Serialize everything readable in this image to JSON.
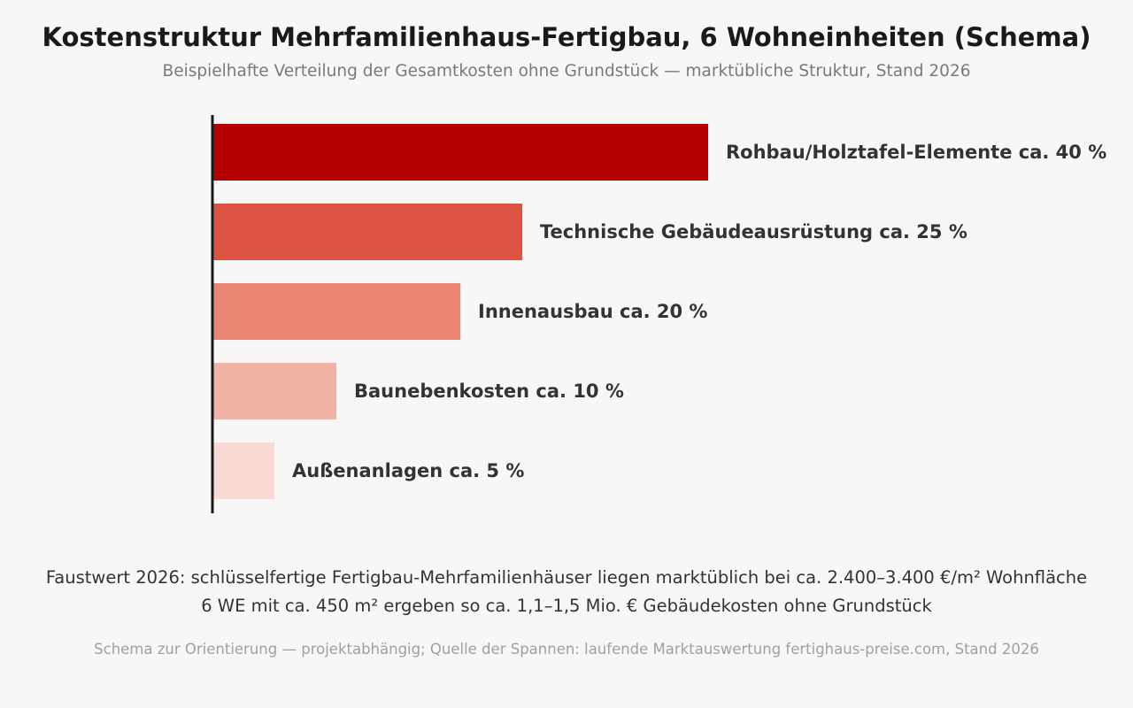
{
  "chart_data": {
    "type": "bar",
    "orientation": "horizontal",
    "title": "Kostenstruktur Mehrfamilienhaus-Fertigbau, 6 Wohneinheiten (Schema)",
    "subtitle": "Beispielhafte Verteilung der Gesamtkosten ohne Grundstück — marktübliche Struktur, Stand 2026",
    "categories": [
      "Rohbau/Holztafel-Elemente",
      "Technische Gebäudeausrüstung",
      "Innenausbau",
      "Baunebenkosten",
      "Außenanlagen"
    ],
    "values": [
      40,
      25,
      20,
      10,
      5
    ],
    "data_labels": [
      "Rohbau/Holztafel-Elemente ca. 40 %",
      "Technische Gebäudeausrüstung ca. 25 %",
      "Innenausbau ca. 20 %",
      "Baunebenkosten ca. 10 %",
      "Außenanlagen ca. 5 %"
    ],
    "colors": [
      "#b50000",
      "#dc5343",
      "#ea8673",
      "#f1b3a6",
      "#f8d9d3"
    ],
    "xlim": [
      0,
      40
    ],
    "grid": false,
    "legend": "none"
  },
  "notes": {
    "line1": "Faustwert 2026: schlüsselfertige Fertigbau-Mehrfamilienhäuser liegen marktüblich bei ca. 2.400–3.400 €/m² Wohnfläche",
    "line2": "6 WE mit ca. 450 m² ergeben so ca. 1,1–1,5 Mio. € Gebäudekosten ohne Grundstück"
  },
  "source": "Schema zur Orientierung — projektabhängig; Quelle der Spannen: laufende Marktauswertung fertighaus-preise.com, Stand 2026",
  "style": {
    "axis_color": "#1a1a1a",
    "label_color": "#333333",
    "background": "#f9f7f5"
  }
}
